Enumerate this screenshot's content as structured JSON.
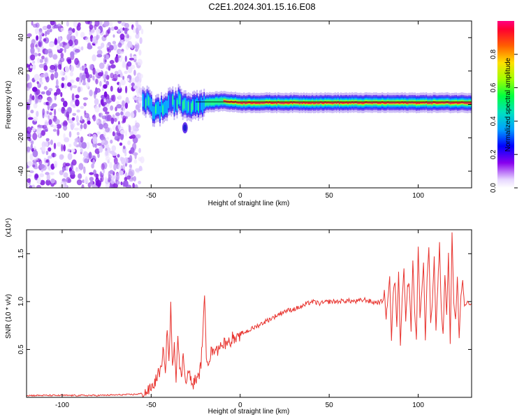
{
  "title": "C2E1.2024.301.15.16.E08",
  "chart_data": [
    {
      "type": "heatmap",
      "title": "C2E1.2024.301.15.16.E08",
      "xlabel": "Height of straight line (km)",
      "ylabel": "Frequency (Hz)",
      "xlim": [
        -120,
        130
      ],
      "ylim": [
        -50,
        50
      ],
      "xticks": [
        "-100",
        "-50",
        "0",
        "50",
        "100"
      ],
      "yticks": [
        "-40",
        "-20",
        "0",
        "20",
        "40"
      ],
      "colorbar": {
        "label": "Normalized spectral amplitude",
        "range": [
          0,
          1
        ],
        "ticks": [
          "0.0",
          "0.2",
          "0.4",
          "0.6",
          "0.8"
        ],
        "colormap": [
          "#ffffff",
          "#c8b0f0",
          "#8800ee",
          "#0000ff",
          "#00b0ff",
          "#00ff80",
          "#80ff00",
          "#ffff00",
          "#ff8000",
          "#ff0000",
          "#ff0080"
        ]
      },
      "description_regions": {
        "noise_region_x": [
          -120,
          -55
        ],
        "noise_amplitude_typical": 0.15,
        "onset_x": -55,
        "signal_frequency_hz": 1,
        "signal_amplitude_peak": 1.0
      },
      "frequency_track": [
        {
          "x": -50,
          "f": -4
        },
        {
          "x": -45,
          "f": -3
        },
        {
          "x": -40,
          "f": 0
        },
        {
          "x": -35,
          "f": 2
        },
        {
          "x": -30,
          "f": -1
        },
        {
          "x": -25,
          "f": 0
        },
        {
          "x": -20,
          "f": 1
        },
        {
          "x": -10,
          "f": 2
        },
        {
          "x": 0,
          "f": 1
        },
        {
          "x": 50,
          "f": 1
        },
        {
          "x": 100,
          "f": 1
        },
        {
          "x": 130,
          "f": 1
        }
      ]
    },
    {
      "type": "line",
      "xlabel": "Height of straight line (km)",
      "ylabel": "SNR (10 * v/v)",
      "y_multiplier": "(x10⁴)",
      "xlim": [
        -120,
        130
      ],
      "ylim": [
        0,
        1.75
      ],
      "xticks": [
        "-100",
        "-50",
        "0",
        "50",
        "100"
      ],
      "yticks": [
        "0.5",
        "1.0",
        "1.5"
      ],
      "color": "#e8332e",
      "series": [
        {
          "x": [
            -120,
            -100,
            -80,
            -60,
            -55,
            -52,
            -50,
            -48,
            -46,
            -44,
            -43,
            -42,
            -41,
            -40,
            -39,
            -38,
            -37,
            -36,
            -35,
            -34,
            -33,
            -32,
            -31,
            -30,
            -29,
            -28,
            -27,
            -26,
            -25,
            -24,
            -23,
            -22,
            -21,
            -20,
            -19,
            -18,
            -17,
            -16,
            -15,
            -14,
            -13,
            -12,
            -11,
            -10,
            -9,
            -8,
            -7,
            -6,
            -5,
            -4,
            -3,
            -2,
            -1,
            0,
            5,
            10,
            15,
            20,
            25,
            30,
            35,
            40,
            45,
            50,
            55,
            60,
            65,
            70,
            75,
            80,
            81,
            82,
            83,
            84,
            85,
            86,
            87,
            88,
            89,
            90,
            91,
            92,
            93,
            94,
            95,
            96,
            97,
            98,
            99,
            100,
            101,
            102,
            103,
            104,
            105,
            106,
            107,
            108,
            109,
            110,
            111,
            112,
            113,
            114,
            115,
            116,
            117,
            118,
            119,
            120,
            121,
            122,
            123,
            124,
            125,
            126,
            127,
            128,
            129,
            130
          ],
          "y": [
            0.02,
            0.02,
            0.02,
            0.03,
            0.04,
            0.06,
            0.1,
            0.15,
            0.25,
            0.3,
            0.55,
            0.22,
            0.75,
            0.35,
            0.95,
            0.28,
            0.6,
            0.18,
            0.7,
            0.3,
            0.2,
            0.45,
            0.25,
            0.15,
            0.3,
            0.2,
            0.12,
            0.15,
            0.2,
            0.18,
            0.25,
            0.35,
            0.7,
            1.03,
            0.45,
            0.38,
            0.42,
            0.5,
            0.45,
            0.55,
            0.48,
            0.5,
            0.6,
            0.52,
            0.58,
            0.55,
            0.62,
            0.56,
            0.6,
            0.65,
            0.58,
            0.62,
            0.6,
            0.66,
            0.7,
            0.75,
            0.8,
            0.85,
            0.9,
            0.92,
            0.95,
            1.0,
            0.98,
            1.0,
            1.0,
            1.01,
            1.0,
            1.02,
            0.99,
            1.0,
            1.1,
            0.82,
            1.05,
            1.25,
            0.6,
            1.1,
            1.2,
            0.75,
            1.3,
            0.55,
            1.05,
            1.35,
            0.8,
            1.15,
            1.2,
            0.7,
            1.45,
            0.9,
            0.6,
            1.58,
            0.85,
            1.1,
            1.4,
            0.6,
            1.25,
            1.55,
            0.78,
            1.0,
            1.45,
            0.7,
            1.15,
            1.6,
            0.9,
            0.65,
            1.3,
            0.85,
            1.5,
            0.55,
            1.7,
            1.0,
            0.8,
            1.28,
            0.6,
            1.05,
            1.2,
            0.95,
            0.98,
            1.0,
            0.97,
            0.98
          ]
        }
      ]
    }
  ]
}
